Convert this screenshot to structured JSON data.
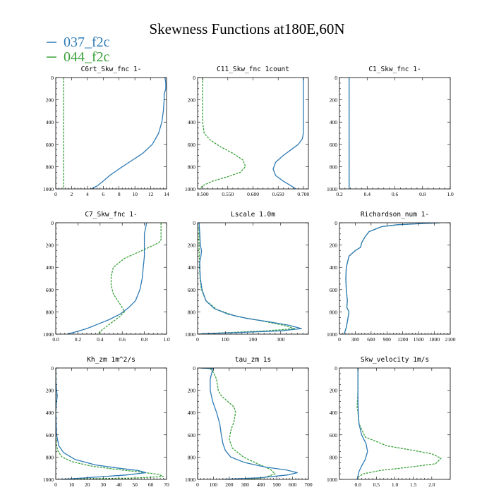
{
  "figure": {
    "title": "Skewness Functions at180E,60N",
    "colors": {
      "037_f2c": "#2e7bb6",
      "044_f2c": "#3aa23a"
    }
  },
  "legend": [
    {
      "name": "037_f2c",
      "color": "#2e7bb6",
      "dashed": false
    },
    {
      "name": "044_f2c",
      "color": "#3aa23a",
      "dashed": true
    }
  ],
  "chart_data": [
    {
      "type": "line",
      "title": "C6rt_Skw_fnc  1-",
      "xlim": [
        0,
        14
      ],
      "ylim": [
        0,
        1000
      ],
      "y_inverted": true,
      "xticks": [
        0,
        2,
        4,
        6,
        8,
        10,
        12,
        14
      ],
      "xtick_labels": [
        "0",
        "2",
        "4",
        "6",
        "8",
        "10",
        "12",
        "14"
      ],
      "yticks": [
        0,
        200,
        400,
        600,
        800,
        1000
      ],
      "ytick_labels": [
        "0",
        "200",
        "400",
        "600",
        "800",
        "1000"
      ],
      "series": [
        {
          "name": "037_f2c",
          "x": [
            13.8,
            13.9,
            13.9,
            13.7,
            13.7,
            13.6,
            13.4,
            13.0,
            12.2,
            11.0,
            9.5,
            8.0,
            6.8,
            6.0,
            5.3,
            4.5
          ],
          "y": [
            0,
            50,
            100,
            150,
            200,
            300,
            400,
            500,
            600,
            680,
            750,
            820,
            880,
            930,
            970,
            1000
          ]
        },
        {
          "name": "044_f2c",
          "x": [
            1.0,
            1.0,
            1.0,
            1.0,
            1.0,
            1.0,
            1.0,
            1.0,
            1.0,
            1.0,
            1.0
          ],
          "y": [
            0,
            100,
            200,
            300,
            400,
            500,
            600,
            700,
            800,
            900,
            1000
          ]
        }
      ]
    },
    {
      "type": "line",
      "title": "C11_Skw_fnc  1count",
      "xlim": [
        0.49,
        0.71
      ],
      "ylim": [
        0,
        1000
      ],
      "y_inverted": true,
      "xticks": [
        0.5,
        0.55,
        0.6,
        0.65,
        0.7
      ],
      "xtick_labels": [
        "0.500",
        "0.550",
        "0.600",
        "0.650",
        "0.700"
      ],
      "yticks": [
        0,
        200,
        400,
        600,
        800,
        1000
      ],
      "ytick_labels": [
        "0",
        "200",
        "400",
        "600",
        "800",
        "1000"
      ],
      "series": [
        {
          "name": "037_f2c",
          "x": [
            0.7,
            0.7,
            0.7,
            0.7,
            0.7,
            0.7,
            0.698,
            0.69,
            0.675,
            0.66,
            0.645,
            0.64,
            0.645,
            0.66,
            0.675,
            0.685
          ],
          "y": [
            0,
            100,
            200,
            300,
            400,
            500,
            550,
            600,
            650,
            700,
            760,
            820,
            880,
            930,
            970,
            1000
          ]
        },
        {
          "name": "044_f2c",
          "x": [
            0.5,
            0.5,
            0.5,
            0.5,
            0.5,
            0.503,
            0.515,
            0.535,
            0.56,
            0.58,
            0.585,
            0.575,
            0.55,
            0.52,
            0.5,
            0.495
          ],
          "y": [
            0,
            100,
            200,
            300,
            400,
            500,
            560,
            620,
            680,
            740,
            800,
            850,
            890,
            930,
            970,
            1000
          ]
        }
      ]
    },
    {
      "type": "line",
      "title": "C1_Skw_fnc  1-",
      "xlim": [
        0.2,
        1.0
      ],
      "ylim": [
        0,
        1000
      ],
      "y_inverted": true,
      "xticks": [
        0.2,
        0.4,
        0.6,
        0.8,
        1.0
      ],
      "xtick_labels": [
        "0.2",
        "0.4",
        "0.6",
        "0.8",
        "1.0"
      ],
      "yticks": [
        0,
        200,
        400,
        600,
        800,
        1000
      ],
      "ytick_labels": [
        "0",
        "200",
        "400",
        "600",
        "800",
        "1000"
      ],
      "series": [
        {
          "name": "037_f2c",
          "x": [
            0.27,
            0.27,
            0.27,
            0.27,
            0.27,
            0.27,
            0.27,
            0.27,
            0.27,
            0.27,
            0.27
          ],
          "y": [
            0,
            100,
            200,
            300,
            400,
            500,
            600,
            700,
            800,
            900,
            1000
          ]
        },
        {
          "name": "044_f2c",
          "x": [
            0.27,
            0.27,
            0.27,
            0.27,
            0.27,
            0.27,
            0.27,
            0.27,
            0.27,
            0.27,
            0.27
          ],
          "y": [
            0,
            100,
            200,
            300,
            400,
            500,
            600,
            700,
            800,
            900,
            1000
          ]
        }
      ]
    },
    {
      "type": "line",
      "title": "C7_Skw_fnc  1-",
      "xlim": [
        0.0,
        1.0
      ],
      "ylim": [
        0,
        1000
      ],
      "y_inverted": true,
      "xticks": [
        0.0,
        0.2,
        0.4,
        0.6,
        0.8,
        1.0
      ],
      "xtick_labels": [
        "0.0",
        "0.2",
        "0.4",
        "0.6",
        "0.8",
        "1.0"
      ],
      "yticks": [
        0,
        200,
        400,
        600,
        800,
        1000
      ],
      "ytick_labels": [
        "0",
        "200",
        "400",
        "600",
        "800",
        "1000"
      ],
      "series": [
        {
          "name": "037_f2c",
          "x": [
            0.82,
            0.81,
            0.8,
            0.8,
            0.8,
            0.79,
            0.78,
            0.76,
            0.72,
            0.66,
            0.58,
            0.48,
            0.38,
            0.28,
            0.18,
            0.1
          ],
          "y": [
            0,
            50,
            100,
            200,
            300,
            400,
            500,
            600,
            700,
            760,
            820,
            870,
            910,
            950,
            980,
            1000
          ]
        },
        {
          "name": "044_f2c",
          "x": [
            0.95,
            0.95,
            0.95,
            0.95,
            0.93,
            0.8,
            0.62,
            0.52,
            0.5,
            0.5,
            0.52,
            0.56,
            0.6,
            0.62,
            0.58,
            0.5,
            0.42,
            0.38
          ],
          "y": [
            0,
            50,
            100,
            150,
            180,
            240,
            320,
            400,
            480,
            560,
            640,
            700,
            760,
            800,
            840,
            900,
            960,
            1000
          ]
        }
      ]
    },
    {
      "type": "line",
      "title": "Lscale  1.0m",
      "xlim": [
        0,
        400
      ],
      "ylim": [
        0,
        1000
      ],
      "y_inverted": true,
      "xticks": [
        0,
        100,
        200,
        300,
        400
      ],
      "xtick_labels": [
        "0",
        "100",
        "200",
        "300",
        ""
      ],
      "yticks": [
        0,
        200,
        400,
        600,
        800,
        1000
      ],
      "ytick_labels": [
        "0",
        "200",
        "400",
        "600",
        "800",
        "1000"
      ],
      "series": [
        {
          "name": "037_f2c",
          "x": [
            5,
            8,
            10,
            14,
            12,
            8,
            8,
            10,
            16,
            30,
            60,
            110,
            180,
            260,
            330,
            375,
            300,
            150,
            30,
            2
          ],
          "y": [
            0,
            100,
            200,
            250,
            300,
            350,
            400,
            500,
            600,
            700,
            770,
            820,
            860,
            890,
            920,
            950,
            970,
            985,
            995,
            1000
          ]
        },
        {
          "name": "044_f2c",
          "x": [
            5,
            5,
            5,
            6,
            7,
            9,
            14,
            30,
            70,
            140,
            230,
            310,
            350,
            250,
            120,
            30,
            5
          ],
          "y": [
            0,
            100,
            200,
            300,
            400,
            500,
            600,
            700,
            780,
            840,
            880,
            920,
            950,
            970,
            985,
            995,
            1000
          ]
        }
      ]
    },
    {
      "type": "line",
      "title": "Richardson_num  1-",
      "xlim": [
        0,
        2100
      ],
      "ylim": [
        0,
        1000
      ],
      "y_inverted": true,
      "xticks": [
        0,
        300,
        600,
        900,
        1200,
        1500,
        1800,
        2100
      ],
      "xtick_labels": [
        "0",
        "300",
        "600",
        "900",
        "1200",
        "1500",
        "1800",
        "2100"
      ],
      "yticks": [
        0,
        200,
        400,
        600,
        800,
        1000
      ],
      "ytick_labels": [
        "0",
        "200",
        "400",
        "600",
        "800",
        "1000"
      ],
      "series": [
        {
          "name": "037_f2c",
          "x": [
            1900,
            1500,
            1100,
            800,
            560,
            480,
            420,
            400,
            300,
            180,
            130,
            120,
            130,
            150,
            140,
            180,
            160,
            130,
            90
          ],
          "y": [
            0,
            8,
            18,
            35,
            80,
            130,
            180,
            220,
            250,
            300,
            400,
            500,
            600,
            700,
            760,
            800,
            860,
            940,
            1000
          ]
        },
        {
          "name": "044_f2c",
          "x": [
            1900,
            1500,
            1100,
            800,
            560,
            480,
            420,
            400,
            300,
            180,
            130,
            120,
            130,
            150,
            140,
            180,
            160,
            130,
            90
          ],
          "y": [
            0,
            8,
            18,
            35,
            80,
            130,
            180,
            220,
            250,
            300,
            400,
            500,
            600,
            700,
            760,
            800,
            860,
            940,
            1000
          ]
        }
      ]
    },
    {
      "type": "line",
      "title": "Kh_zm  1m^2/s",
      "xlim": [
        0,
        70
      ],
      "ylim": [
        0,
        1000
      ],
      "y_inverted": true,
      "xticks": [
        0,
        10,
        20,
        30,
        40,
        50,
        60,
        70
      ],
      "xtick_labels": [
        "0",
        "10",
        "20",
        "30",
        "40",
        "50",
        "60",
        "70"
      ],
      "yticks": [
        0,
        200,
        400,
        600,
        800,
        1000
      ],
      "ytick_labels": [
        "0",
        "200",
        "400",
        "600",
        "800",
        "1000"
      ],
      "series": [
        {
          "name": "037_f2c",
          "x": [
            0,
            0,
            0.5,
            1,
            0.5,
            0,
            0.5,
            2,
            5,
            12,
            25,
            40,
            52,
            57,
            45,
            20,
            3
          ],
          "y": [
            0,
            100,
            200,
            250,
            300,
            400,
            600,
            700,
            760,
            820,
            870,
            900,
            920,
            940,
            960,
            985,
            1000
          ]
        },
        {
          "name": "044_f2c",
          "x": [
            0,
            0,
            0,
            0,
            0.5,
            1.5,
            4,
            10,
            22,
            38,
            54,
            65,
            68,
            50,
            20,
            3
          ],
          "y": [
            0,
            200,
            400,
            600,
            700,
            750,
            800,
            840,
            880,
            910,
            935,
            955,
            975,
            988,
            995,
            1000
          ]
        }
      ]
    },
    {
      "type": "line",
      "title": "tau_zm  1s",
      "xlim": [
        0,
        700
      ],
      "ylim": [
        0,
        1000
      ],
      "y_inverted": true,
      "xticks": [
        0,
        100,
        200,
        300,
        400,
        500,
        600,
        700
      ],
      "xtick_labels": [
        "0",
        "100",
        "200",
        "300",
        "400",
        "500",
        "600",
        "700"
      ],
      "yticks": [
        0,
        200,
        400,
        600,
        800,
        1000
      ],
      "ytick_labels": [
        "0",
        "200",
        "400",
        "600",
        "800",
        "1000"
      ],
      "series": [
        {
          "name": "037_f2c",
          "x": [
            20,
            100,
            90,
            80,
            80,
            95,
            120,
            140,
            150,
            160,
            175,
            210,
            300,
            430,
            560,
            630,
            570,
            400,
            150
          ],
          "y": [
            0,
            5,
            40,
            100,
            200,
            300,
            400,
            500,
            600,
            680,
            740,
            800,
            850,
            890,
            915,
            940,
            960,
            985,
            1000
          ]
        },
        {
          "name": "044_f2c",
          "x": [
            20,
            80,
            100,
            120,
            130,
            150,
            190,
            230,
            240,
            230,
            210,
            200,
            220,
            290,
            380,
            460,
            490,
            420,
            300
          ],
          "y": [
            0,
            5,
            40,
            100,
            200,
            250,
            300,
            350,
            400,
            480,
            560,
            640,
            720,
            800,
            860,
            910,
            950,
            985,
            1000
          ]
        }
      ]
    },
    {
      "type": "line",
      "title": "Skw_velocity  1m/s",
      "xlim": [
        -0.5,
        2.5
      ],
      "ylim": [
        0,
        1000
      ],
      "y_inverted": true,
      "xticks": [
        0.0,
        0.5,
        1.0,
        1.5,
        2.0
      ],
      "xtick_labels": [
        "0.0",
        "0.5",
        "1.0",
        "1.5",
        "2.0"
      ],
      "yticks": [
        0,
        200,
        400,
        600,
        800,
        1000
      ],
      "ytick_labels": [
        "0",
        "200",
        "400",
        "600",
        "800",
        "1000"
      ],
      "series": [
        {
          "name": "037_f2c",
          "x": [
            0,
            0,
            0,
            0,
            0.01,
            0.03,
            0.1,
            0.22,
            0.26,
            0.2,
            0.1,
            0.03,
            0,
            -0.02
          ],
          "y": [
            0,
            100,
            200,
            300,
            400,
            500,
            600,
            680,
            750,
            820,
            880,
            930,
            970,
            1000
          ]
        },
        {
          "name": "044_f2c",
          "x": [
            0,
            0,
            0,
            -0.02,
            0,
            0.03,
            0.2,
            0.8,
            1.5,
            2.0,
            2.25,
            2.1,
            1.4,
            0.6,
            0.15,
            0,
            -0.02
          ],
          "y": [
            0,
            100,
            200,
            350,
            400,
            500,
            620,
            700,
            740,
            770,
            810,
            860,
            890,
            920,
            950,
            980,
            1000
          ]
        }
      ]
    }
  ]
}
